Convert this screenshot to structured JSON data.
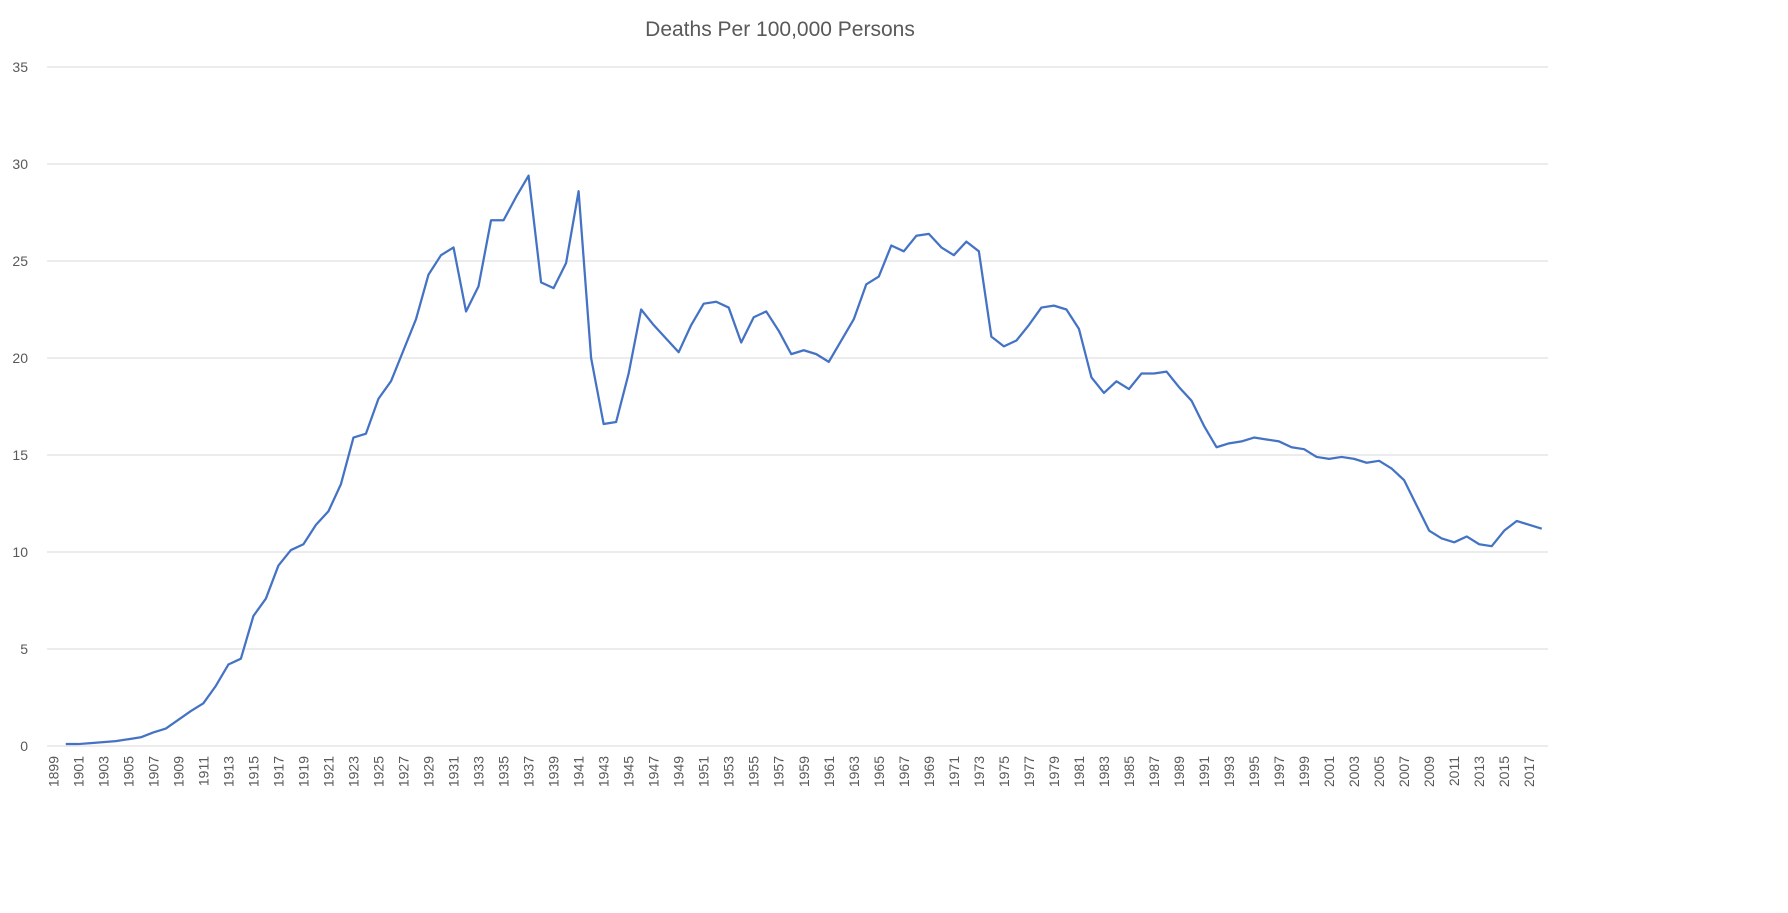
{
  "chart_data": {
    "type": "line",
    "title": "Deaths Per 100,000 Persons",
    "xlabel": "",
    "ylabel": "",
    "ylim": [
      0,
      35
    ],
    "yticks": [
      0,
      5,
      10,
      15,
      20,
      25,
      30,
      35
    ],
    "xlim": [
      1899,
      2018
    ],
    "grid": "horizontal",
    "legend": "none",
    "colors": {
      "line": "#4472c4",
      "grid": "#d9d9d9",
      "text": "#595959"
    },
    "x": [
      1900,
      1901,
      1902,
      1903,
      1904,
      1905,
      1906,
      1907,
      1908,
      1909,
      1910,
      1911,
      1912,
      1913,
      1914,
      1915,
      1916,
      1917,
      1918,
      1919,
      1920,
      1921,
      1922,
      1923,
      1924,
      1925,
      1926,
      1927,
      1928,
      1929,
      1930,
      1931,
      1932,
      1933,
      1934,
      1935,
      1936,
      1937,
      1938,
      1939,
      1940,
      1941,
      1942,
      1943,
      1944,
      1945,
      1946,
      1947,
      1948,
      1949,
      1950,
      1951,
      1952,
      1953,
      1954,
      1955,
      1956,
      1957,
      1958,
      1959,
      1960,
      1961,
      1962,
      1963,
      1964,
      1965,
      1966,
      1967,
      1968,
      1969,
      1970,
      1971,
      1972,
      1973,
      1974,
      1975,
      1976,
      1977,
      1978,
      1979,
      1980,
      1981,
      1982,
      1983,
      1984,
      1985,
      1986,
      1987,
      1988,
      1989,
      1990,
      1991,
      1992,
      1993,
      1994,
      1995,
      1996,
      1997,
      1998,
      1999,
      2000,
      2001,
      2002,
      2003,
      2004,
      2005,
      2006,
      2007,
      2008,
      2009,
      2010,
      2011,
      2012,
      2013,
      2014,
      2015,
      2016,
      2017,
      2018
    ],
    "series": [
      {
        "values": [
          0.1,
          0.1,
          0.15,
          0.2,
          0.25,
          0.35,
          0.45,
          0.7,
          0.9,
          1.35,
          1.8,
          2.2,
          3.1,
          4.2,
          4.5,
          6.7,
          7.6,
          9.3,
          10.1,
          10.4,
          11.4,
          12.1,
          13.5,
          15.9,
          16.1,
          17.9,
          18.8,
          20.4,
          22,
          24.3,
          25.3,
          25.7,
          22.4,
          23.7,
          27.1,
          27.1,
          28.3,
          29.4,
          23.9,
          23.6,
          24.9,
          28.6,
          20,
          16.6,
          16.7,
          19.2,
          22.5,
          21.7,
          21,
          20.3,
          21.7,
          22.8,
          22.9,
          22.6,
          20.8,
          22.1,
          22.4,
          21.4,
          20.2,
          20.4,
          20.2,
          19.8,
          20.9,
          22,
          23.8,
          24.2,
          25.8,
          25.5,
          26.3,
          26.4,
          25.7,
          25.3,
          26,
          25.5,
          21.1,
          20.6,
          20.9,
          21.7,
          22.6,
          22.7,
          22.5,
          21.5,
          19,
          18.2,
          18.8,
          18.4,
          19.2,
          19.2,
          19.3,
          18.5,
          17.8,
          16.5,
          15.4,
          15.6,
          15.7,
          15.9,
          15.8,
          15.7,
          15.4,
          15.3,
          14.9,
          14.8,
          14.9,
          14.8,
          14.6,
          14.7,
          14.3,
          13.7,
          12.4,
          11.1,
          10.7,
          10.5,
          10.8,
          10.4,
          10.3,
          11.1,
          11.6,
          11.4,
          11.2
        ]
      }
    ]
  }
}
